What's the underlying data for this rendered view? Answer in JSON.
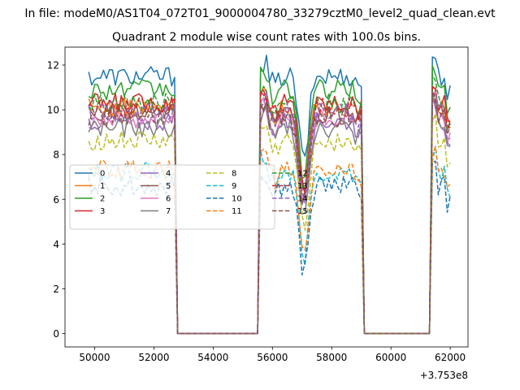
{
  "chart_data": {
    "type": "line",
    "suptitle": "In file: modeM0/AS1T04_072T01_9000004780_33279cztM0_level2_quad_clean.evt",
    "title": "Quadrant 2 module wise count rates with 100.0s bins.",
    "xlabel": "",
    "ylabel": "",
    "x_offset_label": "+3.753e8",
    "xlim": [
      49000,
      62600
    ],
    "ylim": [
      -0.6,
      12.8
    ],
    "xticks": [
      50000,
      52000,
      54000,
      56000,
      58000,
      60000,
      62000
    ],
    "xtick_labels": [
      "50000",
      "52000",
      "54000",
      "56000",
      "58000",
      "60000",
      "62000"
    ],
    "yticks": [
      0,
      2,
      4,
      6,
      8,
      10,
      12
    ],
    "ytick_labels": [
      "0",
      "2",
      "4",
      "6",
      "8",
      "10",
      "12"
    ],
    "grid": false,
    "legend_position": "center-left",
    "segments": [
      {
        "start": 49800,
        "end": 52700
      },
      {
        "start": 55600,
        "end": 59000
      },
      {
        "start": 61400,
        "end": 62000
      }
    ],
    "series": [
      {
        "name": "0",
        "color": "#1f77b4",
        "dash": "solid",
        "level": 11.5,
        "seed": 1
      },
      {
        "name": "1",
        "color": "#ff7f0e",
        "dash": "solid",
        "level": 10.1,
        "seed": 2
      },
      {
        "name": "2",
        "color": "#2ca02c",
        "dash": "solid",
        "level": 10.9,
        "seed": 3
      },
      {
        "name": "3",
        "color": "#d62728",
        "dash": "solid",
        "level": 10.3,
        "seed": 4
      },
      {
        "name": "4",
        "color": "#9467bd",
        "dash": "solid",
        "level": 9.5,
        "seed": 5
      },
      {
        "name": "5",
        "color": "#8c564b",
        "dash": "solid",
        "level": 9.8,
        "seed": 6
      },
      {
        "name": "6",
        "color": "#e377c2",
        "dash": "solid",
        "level": 9.6,
        "seed": 7
      },
      {
        "name": "7",
        "color": "#7f7f7f",
        "dash": "solid",
        "level": 9.2,
        "seed": 8
      },
      {
        "name": "8",
        "color": "#bcbd22",
        "dash": "dashed",
        "level": 8.6,
        "seed": 9
      },
      {
        "name": "9",
        "color": "#17becf",
        "dash": "dashed",
        "level": 7.2,
        "seed": 10
      },
      {
        "name": "10",
        "color": "#1f77b4",
        "dash": "dashed",
        "level": 6.6,
        "seed": 11
      },
      {
        "name": "11",
        "color": "#ff7f0e",
        "dash": "dashed",
        "level": 7.3,
        "seed": 12
      },
      {
        "name": "12",
        "color": "#2ca02c",
        "dash": "dashed",
        "level": 10.3,
        "seed": 13
      },
      {
        "name": "13",
        "color": "#d62728",
        "dash": "dashed",
        "level": 10.1,
        "seed": 14
      },
      {
        "name": "14",
        "color": "#9467bd",
        "dash": "dashed",
        "level": 9.9,
        "seed": 15
      },
      {
        "name": "15",
        "color": "#8c564b",
        "dash": "dashed",
        "level": 9.7,
        "seed": 16
      }
    ]
  }
}
